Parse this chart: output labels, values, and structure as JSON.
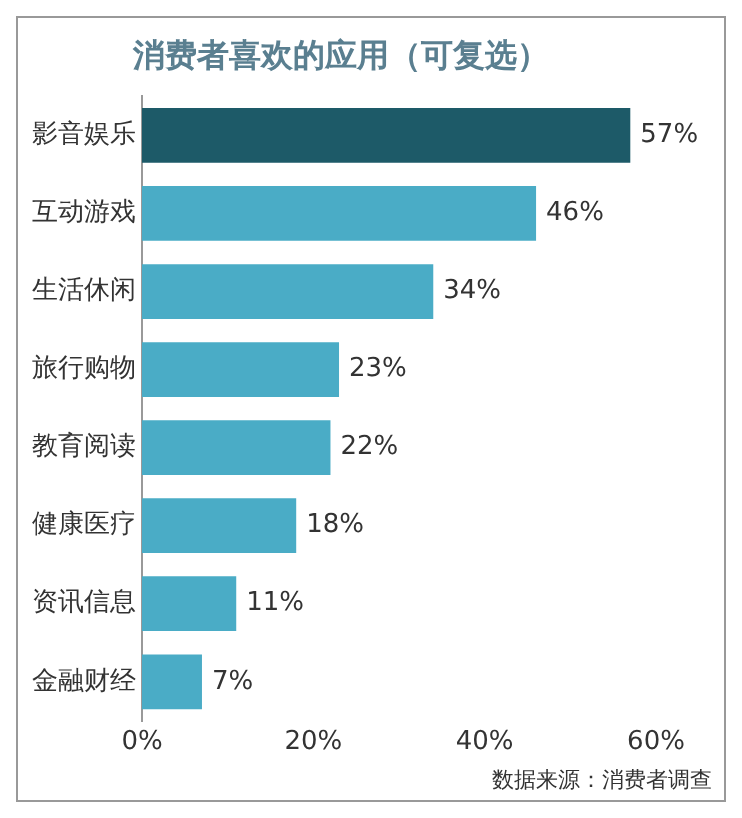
{
  "chart_data": {
    "type": "bar",
    "orientation": "horizontal",
    "title": "消费者喜欢的应用（可复选）",
    "categories": [
      "影音娱乐",
      "互动游戏",
      "生活休闲",
      "旅行购物",
      "教育阅读",
      "健康医疗",
      "资讯信息",
      "金融财经"
    ],
    "values": [
      57,
      46,
      34,
      23,
      22,
      18,
      11,
      7
    ],
    "colors": [
      "#1d5a68",
      "#4aacc6",
      "#4aacc6",
      "#4aacc6",
      "#4aacc6",
      "#4aacc6",
      "#4aacc6",
      "#4aacc6"
    ],
    "value_labels": [
      "57%",
      "46%",
      "34%",
      "23%",
      "22%",
      "18%",
      "11%",
      "7%"
    ],
    "xlim": [
      0,
      60
    ],
    "xticks": [
      {
        "value": 0,
        "label": "0%"
      },
      {
        "value": 20,
        "label": "20%"
      },
      {
        "value": 40,
        "label": "40%"
      },
      {
        "value": 60,
        "label": "60%"
      }
    ],
    "grid": false,
    "legend": false,
    "annotations": [
      "数据来源：消费者调查"
    ]
  }
}
